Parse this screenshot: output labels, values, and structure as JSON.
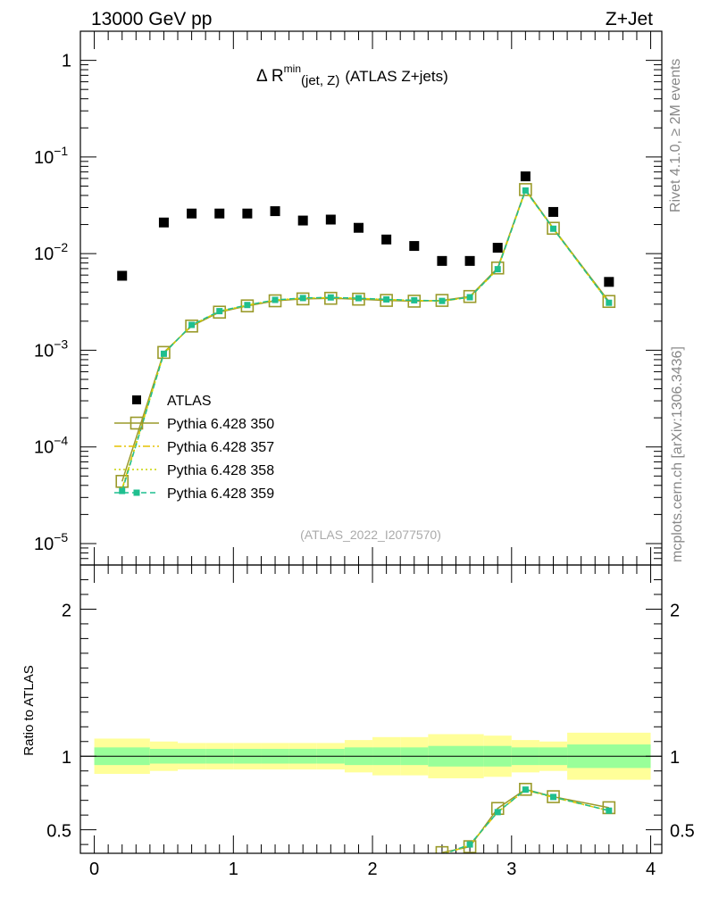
{
  "header": {
    "left": "13000 GeV pp",
    "right": "Z+Jet"
  },
  "side_labels": {
    "rivet": "Rivet 4.1.0, ≥ 2M events",
    "mcplots": "mcplots.cern.ch [arXiv:1306.3436]"
  },
  "chart_data": [
    {
      "type": "scatter",
      "panel": "main",
      "title_parts": {
        "delta": "Δ R",
        "sup": "min",
        "sub": "(jet, Z)",
        "suffix": "(ATLAS Z+jets)"
      },
      "analysis_id": "(ATLAS_2022_I2077570)",
      "yscale": "log",
      "xlim": [
        -0.1,
        4.08
      ],
      "ylim": [
        6e-06,
        2.0
      ],
      "x_ticks": [
        0,
        1,
        2,
        3,
        4
      ],
      "y_tick_labels": [
        {
          "value": 1,
          "base": "1",
          "exp": ""
        },
        {
          "value": 0.1,
          "base": "10",
          "exp": "−1"
        },
        {
          "value": 0.01,
          "base": "10",
          "exp": "−2"
        },
        {
          "value": 0.001,
          "base": "10",
          "exp": "−3"
        },
        {
          "value": 0.0001,
          "base": "10",
          "exp": "−4"
        },
        {
          "value": 1e-05,
          "base": "10",
          "exp": "−5"
        }
      ],
      "legend": [
        {
          "label": "ATLAS",
          "color": "#000000",
          "style": "data"
        },
        {
          "label": "Pythia 6.428 350",
          "color": "#9a9a2a",
          "style": "open-square"
        },
        {
          "label": "Pythia 6.428 357",
          "color": "#e6c200",
          "style": "dashdot"
        },
        {
          "label": "Pythia 6.428 358",
          "color": "#c8d400",
          "style": "dotted"
        },
        {
          "label": "Pythia 6.428 359",
          "color": "#1fbf8f",
          "style": "dashed-square"
        }
      ],
      "series": [
        {
          "name": "ATLAS",
          "x": [
            0.2,
            0.5,
            0.7,
            0.9,
            1.1,
            1.3,
            1.5,
            1.7,
            1.9,
            2.1,
            2.3,
            2.5,
            2.7,
            2.9,
            3.1,
            3.3,
            3.7
          ],
          "y": [
            0.0059,
            0.021,
            0.026,
            0.026,
            0.026,
            0.0275,
            0.022,
            0.0225,
            0.0185,
            0.014,
            0.012,
            0.0084,
            0.0084,
            0.0115,
            0.063,
            0.027,
            0.0051
          ]
        },
        {
          "name": "Pythia 6.428 350",
          "x": [
            0.2,
            0.5,
            0.7,
            0.9,
            1.1,
            1.3,
            1.5,
            1.7,
            1.9,
            2.1,
            2.3,
            2.5,
            2.7,
            2.9,
            3.1,
            3.3,
            3.7
          ],
          "y": [
            4.4e-05,
            0.00095,
            0.00178,
            0.00248,
            0.00288,
            0.00325,
            0.0034,
            0.00345,
            0.00338,
            0.00328,
            0.00322,
            0.00328,
            0.0036,
            0.0071,
            0.046,
            0.0183,
            0.0032
          ]
        },
        {
          "name": "Pythia 6.428 357",
          "x": [
            0.2,
            0.5,
            0.7,
            0.9,
            1.1,
            1.3,
            1.5,
            1.7,
            1.9,
            2.1,
            2.3,
            2.5,
            2.7,
            2.9,
            3.1,
            3.3,
            3.7
          ],
          "y": [
            3.7e-05,
            0.00093,
            0.00181,
            0.00252,
            0.00292,
            0.0033,
            0.00345,
            0.0035,
            0.00344,
            0.00334,
            0.00327,
            0.00322,
            0.00352,
            0.0069,
            0.045,
            0.0181,
            0.0031
          ]
        },
        {
          "name": "Pythia 6.428 358",
          "x": [
            0.2,
            0.5,
            0.7,
            0.9,
            1.1,
            1.3,
            1.5,
            1.7,
            1.9,
            2.1,
            2.3,
            2.5,
            2.7,
            2.9,
            3.1,
            3.3,
            3.7
          ],
          "y": [
            3.6e-05,
            0.00092,
            0.00182,
            0.00253,
            0.00293,
            0.00331,
            0.00346,
            0.00351,
            0.00345,
            0.00335,
            0.00328,
            0.00323,
            0.00353,
            0.0069,
            0.045,
            0.018,
            0.0031
          ]
        },
        {
          "name": "Pythia 6.428 359",
          "x": [
            0.2,
            0.5,
            0.7,
            0.9,
            1.1,
            1.3,
            1.5,
            1.7,
            1.9,
            2.1,
            2.3,
            2.5,
            2.7,
            2.9,
            3.1,
            3.3,
            3.7
          ],
          "y": [
            3.5e-05,
            0.00092,
            0.00183,
            0.00254,
            0.00294,
            0.00332,
            0.00347,
            0.00352,
            0.00346,
            0.00336,
            0.00329,
            0.00324,
            0.00354,
            0.0069,
            0.045,
            0.0181,
            0.0031
          ]
        }
      ]
    },
    {
      "type": "line",
      "panel": "ratio",
      "ylabel": "Ratio to ATLAS",
      "ylim": [
        0.34,
        2.3
      ],
      "xlim": [
        -0.1,
        4.08
      ],
      "y_ticks": [
        0.5,
        1,
        2
      ],
      "y_tick_labels": [
        "0.5",
        "1",
        "2"
      ],
      "x_tick_labels": [
        "0",
        "1",
        "2",
        "3",
        "4"
      ],
      "bands": {
        "edges": [
          0,
          0.4,
          0.6,
          0.8,
          1.0,
          1.2,
          1.4,
          1.6,
          1.8,
          2.0,
          2.2,
          2.4,
          2.6,
          2.8,
          3.0,
          3.2,
          3.4,
          4.0
        ],
        "stat_lo": [
          0.94,
          0.95,
          0.95,
          0.95,
          0.95,
          0.95,
          0.95,
          0.95,
          0.94,
          0.94,
          0.94,
          0.93,
          0.93,
          0.93,
          0.94,
          0.94,
          0.92
        ],
        "stat_hi": [
          1.06,
          1.05,
          1.05,
          1.05,
          1.05,
          1.05,
          1.05,
          1.05,
          1.06,
          1.06,
          1.06,
          1.07,
          1.07,
          1.07,
          1.06,
          1.06,
          1.08
        ],
        "tot_lo": [
          0.88,
          0.9,
          0.91,
          0.91,
          0.91,
          0.91,
          0.91,
          0.91,
          0.89,
          0.87,
          0.87,
          0.85,
          0.85,
          0.86,
          0.89,
          0.9,
          0.84
        ],
        "tot_hi": [
          1.12,
          1.1,
          1.09,
          1.09,
          1.09,
          1.09,
          1.09,
          1.09,
          1.11,
          1.13,
          1.13,
          1.15,
          1.15,
          1.14,
          1.11,
          1.1,
          1.16
        ]
      },
      "series": [
        {
          "name": "Pythia 6.428 350",
          "x": [
            2.5,
            2.7,
            2.9,
            3.1,
            3.3,
            3.7
          ],
          "y": [
            0.345,
            0.385,
            0.645,
            0.775,
            0.725,
            0.65
          ]
        },
        {
          "name": "Pythia 6.428 357",
          "x": [
            2.5,
            2.7,
            2.9,
            3.1,
            3.3,
            3.7
          ],
          "y": [
            0.33,
            0.395,
            0.62,
            0.77,
            0.72,
            0.63
          ]
        },
        {
          "name": "Pythia 6.428 358",
          "x": [
            2.5,
            2.7,
            2.9,
            3.1,
            3.3,
            3.7
          ],
          "y": [
            0.33,
            0.4,
            0.62,
            0.772,
            0.722,
            0.63
          ]
        },
        {
          "name": "Pythia 6.428 359",
          "x": [
            2.5,
            2.7,
            2.9,
            3.1,
            3.3,
            3.7
          ],
          "y": [
            0.33,
            0.4,
            0.62,
            0.773,
            0.723,
            0.63
          ]
        }
      ]
    }
  ]
}
